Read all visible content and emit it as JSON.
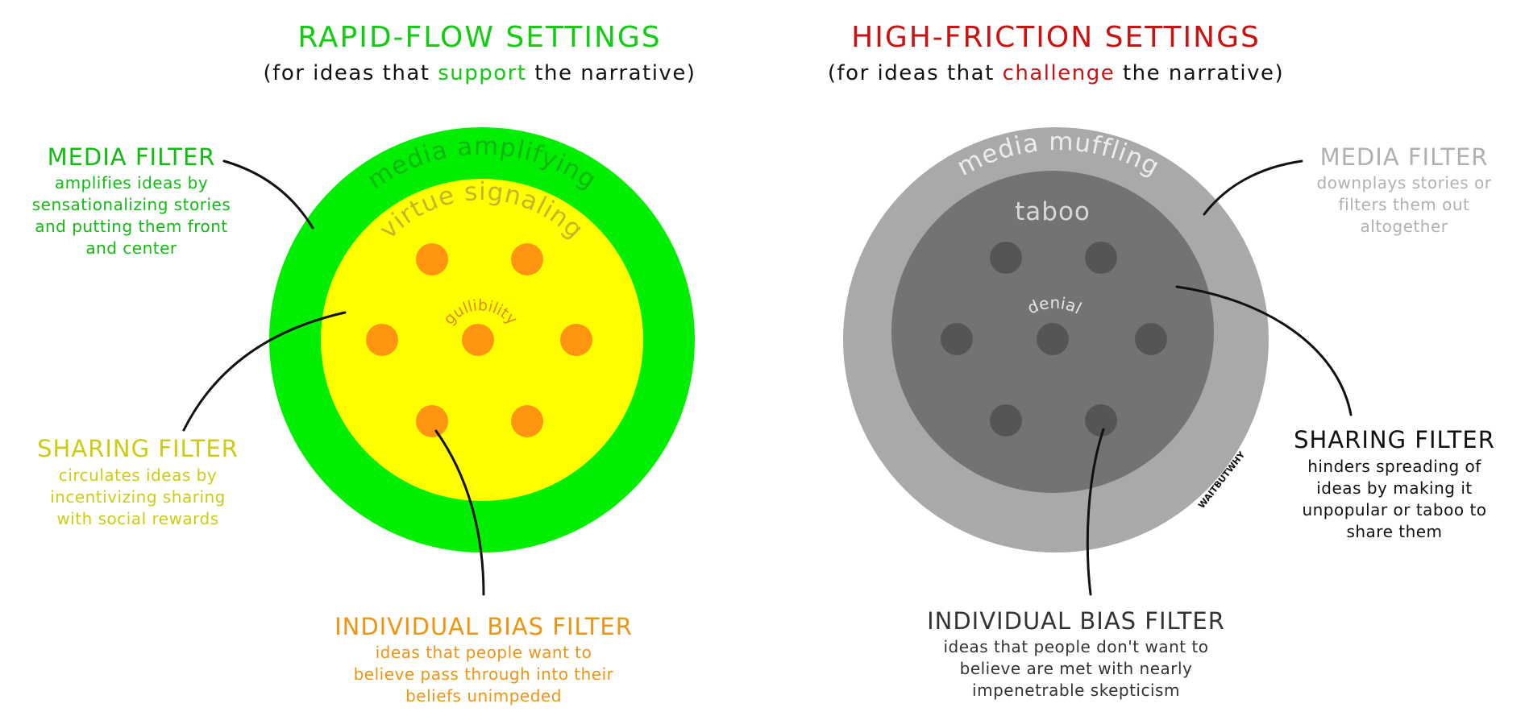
{
  "colors": {
    "green": "#11cc11",
    "green_fill": "#00ee00",
    "yellow_fill": "#ffff00",
    "yellow_text": "#cccc11",
    "orange": "#ff9411",
    "orange_text": "#ee9411",
    "red": "#cc1111",
    "grey_outer": "#a9a9a9",
    "grey_inner": "#737373",
    "grey_dot": "#555555",
    "grey_text": "#b0b0b0",
    "dark_text": "#333333"
  },
  "left": {
    "title": "RAPID-FLOW SETTINGS",
    "subtitle_pre": "(for ideas that ",
    "subtitle_key": "support",
    "subtitle_post": " the narrative)",
    "ring_outer_label": "media amplifying",
    "ring_inner_label": "virtue signaling",
    "center_label": "gullibility",
    "media_filter": {
      "heading": "MEDIA FILTER",
      "lines": [
        "amplifies ideas by",
        "sensationalizing stories",
        "and putting them front",
        "and center"
      ]
    },
    "sharing_filter": {
      "heading": "SHARING FILTER",
      "lines": [
        "circulates ideas by",
        "incentivizing sharing",
        "with social rewards"
      ]
    },
    "bias_filter": {
      "heading": "INDIVIDUAL BIAS FILTER",
      "lines": [
        "ideas that people want to",
        "believe pass through into their",
        "beliefs unimpeded"
      ]
    }
  },
  "right": {
    "title": "HIGH-FRICTION SETTINGS",
    "subtitle_pre": "(for ideas that ",
    "subtitle_key": "challenge",
    "subtitle_post": " the narrative)",
    "ring_outer_label": "media muffling",
    "ring_inner_label": "taboo",
    "center_label": "denial",
    "watermark": "WAITBUTWHY",
    "media_filter": {
      "heading": "MEDIA FILTER",
      "lines": [
        "downplays stories or",
        "filters them out",
        "altogether"
      ]
    },
    "sharing_filter": {
      "heading": "SHARING FILTER",
      "lines": [
        "hinders spreading of",
        "ideas by making it",
        "unpopular or taboo to",
        "share them"
      ]
    },
    "bias_filter": {
      "heading": "INDIVIDUAL BIAS FILTER",
      "lines": [
        "ideas that people don't want to",
        "believe are met with nearly",
        "impenetrable skepticism"
      ]
    }
  }
}
